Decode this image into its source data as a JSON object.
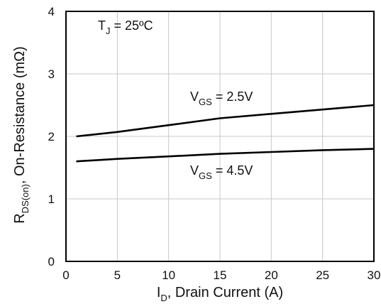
{
  "chart_data": {
    "type": "line",
    "x_label": {
      "main": "I",
      "sub": "D",
      "rest": ", Drain Current (A)"
    },
    "y_label": {
      "main": "R",
      "sub": "DS(on)",
      "rest": ", On-Resistance (mΩ)"
    },
    "x_ticks": [
      "0",
      "5",
      "10",
      "15",
      "20",
      "25",
      "30"
    ],
    "y_ticks": [
      "0",
      "1",
      "2",
      "3",
      "4"
    ],
    "xlim": [
      0,
      30
    ],
    "ylim": [
      0,
      4
    ],
    "grid": true,
    "series": [
      {
        "x": [
          1,
          5,
          10,
          15,
          20,
          25,
          30
        ],
        "y": [
          2.0,
          2.07,
          2.18,
          2.29,
          2.36,
          2.43,
          2.5
        ]
      },
      {
        "x": [
          1,
          5,
          10,
          15,
          20,
          25,
          30
        ],
        "y": [
          1.6,
          1.64,
          1.68,
          1.72,
          1.75,
          1.78,
          1.8
        ]
      }
    ],
    "annotations": [
      {
        "main": "V",
        "sub": "GS",
        "rest": " = 2.5V"
      },
      {
        "main": "V",
        "sub": "GS",
        "rest": " = 4.5V"
      },
      {
        "main": "T",
        "sub": "J",
        "rest": " = 25ºC"
      }
    ]
  }
}
